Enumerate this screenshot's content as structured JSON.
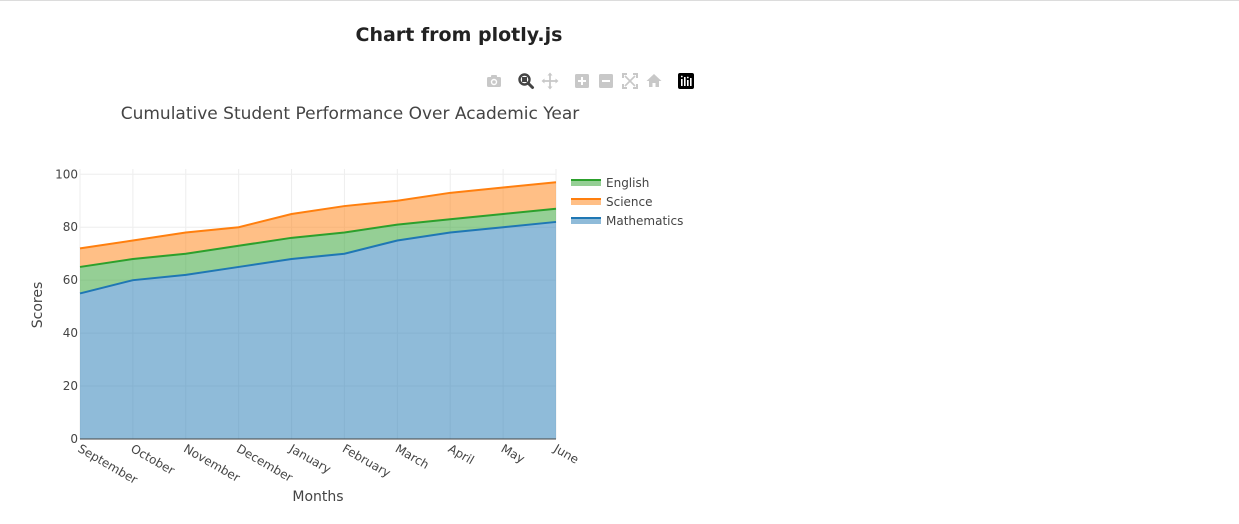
{
  "page": {
    "heading": "Chart from plotly.js"
  },
  "modebar": {
    "buttons": [
      {
        "name": "camera-icon",
        "title": "Download plot as a png"
      },
      {
        "name": "zoom-icon",
        "title": "Zoom"
      },
      {
        "name": "pan-icon",
        "title": "Pan"
      },
      {
        "name": "zoom-in-icon",
        "title": "Zoom in"
      },
      {
        "name": "zoom-out-icon",
        "title": "Zoom out"
      },
      {
        "name": "autoscale-icon",
        "title": "Autoscale"
      },
      {
        "name": "home-icon",
        "title": "Reset axes"
      },
      {
        "name": "plotly-logo-icon",
        "title": "Produced with Plotly"
      }
    ]
  },
  "chart_data": {
    "type": "area",
    "stacked": true,
    "title": "Cumulative Student Performance Over Academic Year",
    "xlabel": "Months",
    "ylabel": "Scores",
    "categories": [
      "September",
      "October",
      "November",
      "December",
      "January",
      "February",
      "March",
      "April",
      "May",
      "June"
    ],
    "ylim": [
      0,
      102
    ],
    "yticks": [
      0,
      20,
      40,
      60,
      80,
      100
    ],
    "grid": true,
    "legend_position": "top-right",
    "series": [
      {
        "name": "Mathematics",
        "color": "#1f77b4",
        "values": [
          55,
          60,
          62,
          65,
          68,
          70,
          75,
          78,
          80,
          82
        ]
      },
      {
        "name": "English",
        "color": "#2ca02c",
        "values": [
          10,
          8,
          8,
          8,
          8,
          8,
          6,
          5,
          5,
          5
        ]
      },
      {
        "name": "Science",
        "color": "#ff7f0e",
        "values": [
          7,
          7,
          8,
          7,
          9,
          10,
          9,
          10,
          10,
          10
        ]
      }
    ],
    "legend_order": [
      "English",
      "Science",
      "Mathematics"
    ]
  }
}
